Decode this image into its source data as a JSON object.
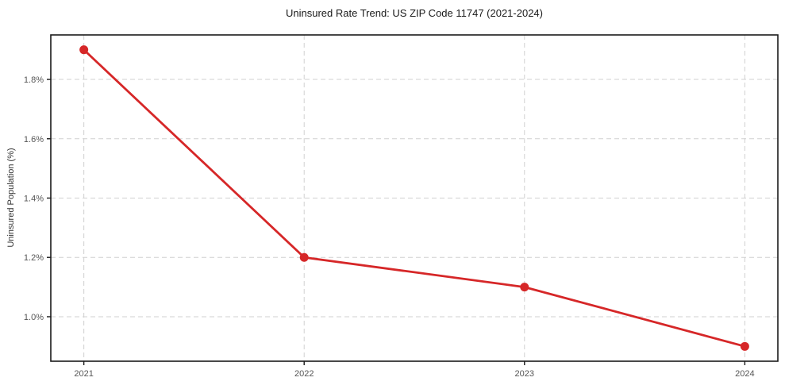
{
  "chart_data": {
    "type": "line",
    "title": "Uninsured Rate Trend: US ZIP Code 11747 (2021-2024)",
    "xlabel": "",
    "ylabel": "Uninsured Population (%)",
    "x": [
      2021,
      2022,
      2023,
      2024
    ],
    "xtick_labels": [
      "2021",
      "2022",
      "2023",
      "2024"
    ],
    "series": [
      {
        "name": "Uninsured rate",
        "values": [
          1.9,
          1.2,
          1.1,
          0.9
        ]
      }
    ],
    "yticks": [
      1.0,
      1.2,
      1.4,
      1.6,
      1.8
    ],
    "ytick_labels": [
      "1.0%",
      "1.2%",
      "1.4%",
      "1.6%",
      "1.8%"
    ],
    "ylim": [
      0.85,
      1.95
    ],
    "xlim": [
      2020.85,
      2024.15
    ],
    "grid": true,
    "legend_position": "none",
    "line_color": "#d62728",
    "marker": "circle",
    "grid_color": "#d0d0d0",
    "spine_color": "#1a1a1a",
    "tick_label_color": "#555555"
  }
}
